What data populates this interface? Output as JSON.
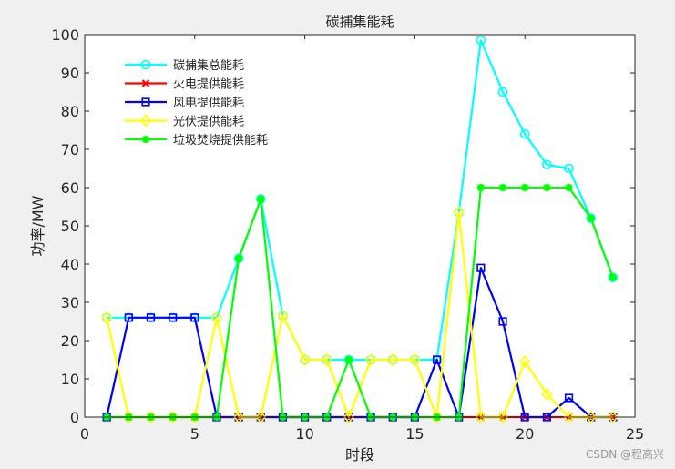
{
  "chart_data": {
    "type": "line",
    "title": "碳捕集能耗",
    "xlabel": "时段",
    "ylabel": "功率/MW",
    "xlim": [
      0,
      25
    ],
    "ylim": [
      0,
      100
    ],
    "xticks": [
      0,
      5,
      10,
      15,
      20,
      25
    ],
    "yticks": [
      0,
      10,
      20,
      30,
      40,
      50,
      60,
      70,
      80,
      90,
      100
    ],
    "grid": false,
    "legend_position": "top-left",
    "x": [
      1,
      2,
      3,
      4,
      5,
      6,
      7,
      8,
      9,
      10,
      11,
      12,
      13,
      14,
      15,
      16,
      17,
      18,
      19,
      20,
      21,
      22,
      23,
      24
    ],
    "series": [
      {
        "name": "碳捕集总能耗",
        "color": "#00ffff",
        "marker": "circle",
        "values": [
          26,
          26,
          26,
          26,
          26,
          26,
          41.5,
          57,
          26.5,
          15,
          15,
          15,
          15,
          15,
          15,
          15,
          53.5,
          98.5,
          85,
          74,
          66,
          65,
          52,
          36.5
        ]
      },
      {
        "name": "火电提供能耗",
        "color": "#ff0000",
        "marker": "x",
        "values": [
          0,
          0,
          0,
          0,
          0,
          0,
          0,
          0,
          0,
          0,
          0,
          0,
          0,
          0,
          0,
          0,
          0,
          0,
          0,
          0,
          0,
          0,
          0,
          0
        ]
      },
      {
        "name": "风电提供能耗",
        "color": "#0000ff",
        "marker": "square",
        "values": [
          0,
          26,
          26,
          26,
          26,
          0,
          0,
          0,
          0,
          0,
          0,
          0,
          0,
          0,
          0,
          15,
          0,
          39,
          25,
          0,
          0,
          5,
          0,
          0
        ]
      },
      {
        "name": "光伏提供能耗",
        "color": "#ffff00",
        "marker": "diamond",
        "values": [
          26,
          0,
          0,
          0,
          0,
          26,
          0,
          0,
          26.5,
          15,
          15,
          0,
          15,
          15,
          15,
          0,
          53.5,
          0,
          0,
          14.5,
          6,
          0,
          0,
          0
        ]
      },
      {
        "name": "垃圾焚烧提供能耗",
        "color": "#00ff00",
        "marker": "asterisk",
        "values": [
          0,
          0,
          0,
          0,
          0,
          0,
          41.5,
          57,
          0,
          0,
          0,
          15,
          0,
          0,
          0,
          0,
          0,
          60,
          60,
          60,
          60,
          60,
          52,
          36.5
        ]
      }
    ]
  },
  "watermark": "CSDN @程高兴"
}
